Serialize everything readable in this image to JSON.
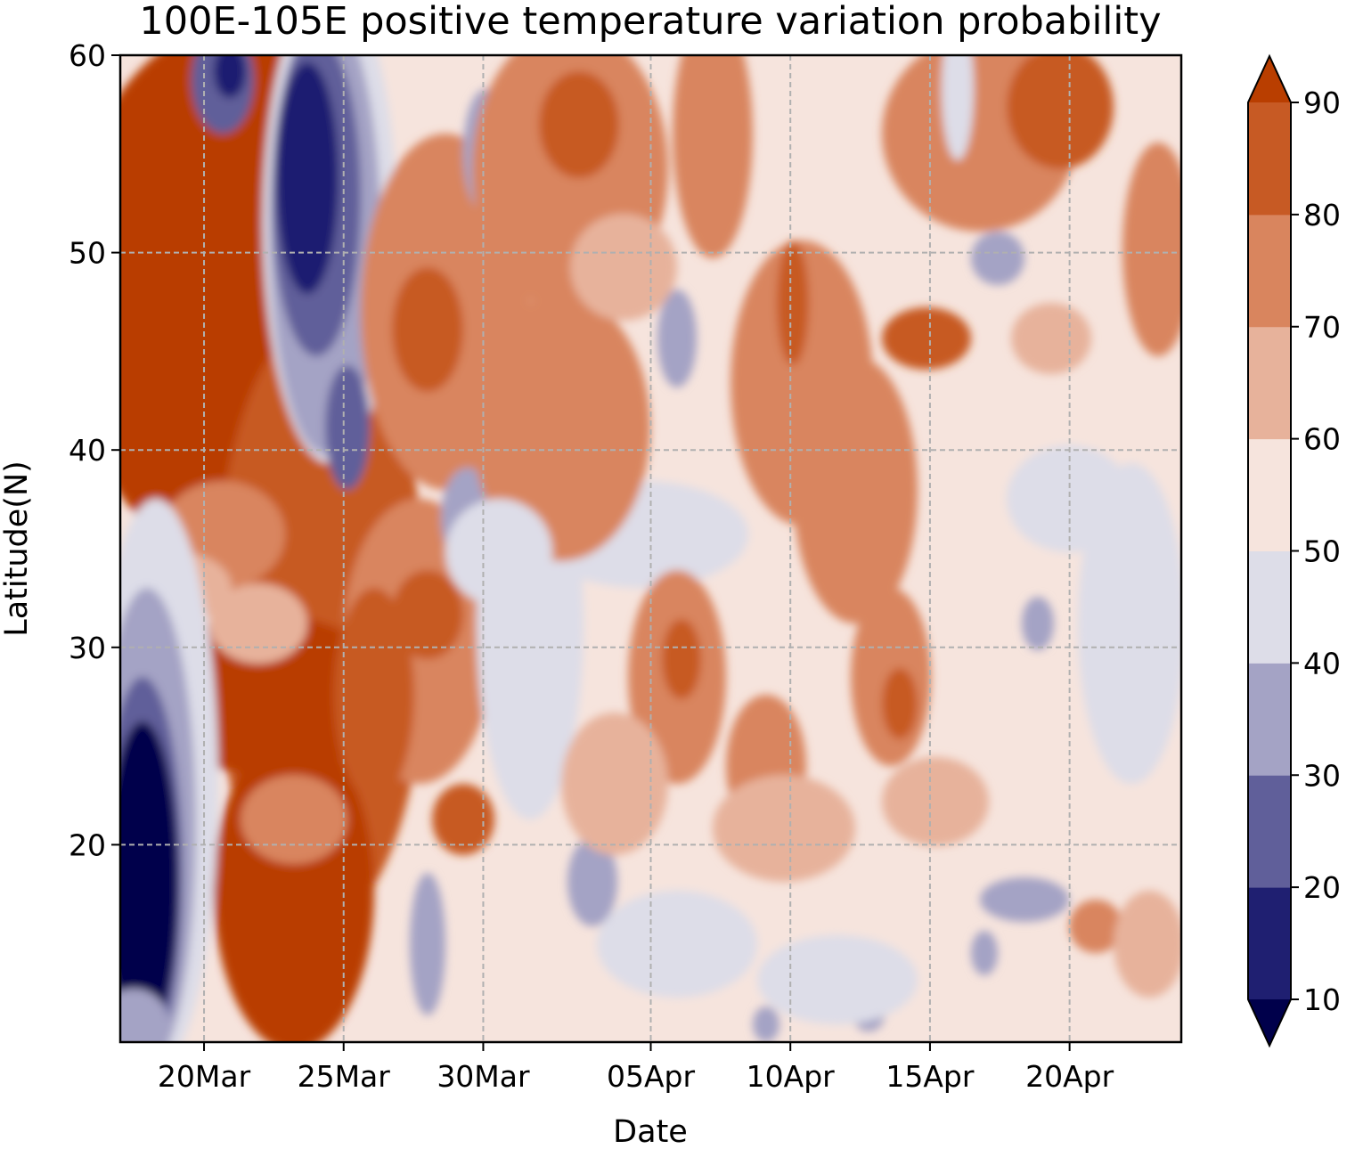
{
  "chart_data": {
    "type": "heatmap",
    "subtype": "filled contour (Hovmoller)",
    "title": "100E-105E positive temperature variation probability",
    "xlabel": "Date",
    "ylabel": "Latitude(N)",
    "x_ticks": [
      "20Mar",
      "25Mar",
      "30Mar",
      "05Apr",
      "10Apr",
      "15Apr",
      "20Apr"
    ],
    "x_range": [
      "17Mar",
      "24Apr"
    ],
    "y_ticks": [
      20,
      30,
      40,
      50,
      60
    ],
    "y_range": [
      10,
      60
    ],
    "grid": true,
    "colorbar": {
      "levels": [
        10,
        20,
        30,
        40,
        50,
        60,
        70,
        80,
        90
      ],
      "tick_labels": [
        "10",
        "20",
        "30",
        "40",
        "50",
        "60",
        "70",
        "80",
        "90"
      ],
      "extend": "both",
      "colors": [
        "#00004b",
        "#1f1f71",
        "#605f9a",
        "#a4a3c5",
        "#dddde8",
        "#f6e4dd",
        "#e7b29b",
        "#d9855e",
        "#c75a24",
        "#b93e00"
      ]
    },
    "description_regions": [
      {
        "dates": [
          "17Mar",
          "23Mar"
        ],
        "lat": [
          35,
          60
        ],
        "probability": ">90"
      },
      {
        "dates": [
          "17Mar",
          "20Mar"
        ],
        "lat": [
          10,
          30
        ],
        "probability": "<10"
      },
      {
        "dates": [
          "23Mar",
          "25Mar"
        ],
        "lat": [
          40,
          60
        ],
        "probability": "10-30"
      },
      {
        "dates": [
          "20Mar",
          "25Mar"
        ],
        "lat": [
          10,
          33
        ],
        "probability": "80-90"
      },
      {
        "dates": [
          "30Mar",
          "24Apr"
        ],
        "lat": [
          10,
          60
        ],
        "probability": "40-80"
      }
    ]
  }
}
